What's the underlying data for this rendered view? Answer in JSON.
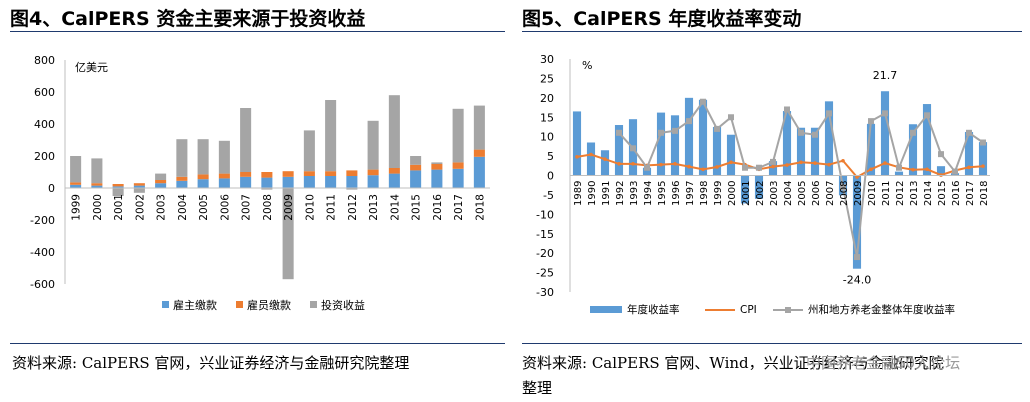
{
  "charts": [
    {
      "title": "图4、CalPERS 资金主要来源于投资收益",
      "source": "资料来源: CalPERS 官网，兴业证券经济与金融研究院整理"
    },
    {
      "title": "图5、CalPERS 年度收益率变动",
      "source_line1": "资料来源:  CalPERS 官网、Wind，兴业证券经济与金融研究院",
      "source_line2": "整理"
    }
  ],
  "watermark": "中国养老金融50人论坛",
  "chart_data": [
    {
      "type": "bar",
      "stacked": true,
      "unit_label": "亿美元",
      "ylim": [
        -600,
        800
      ],
      "yticks": [
        "800",
        "600",
        "400",
        "200",
        "0",
        "-200",
        "-400",
        "-600"
      ],
      "categories": [
        "1999",
        "2000",
        "2001",
        "2002",
        "2003",
        "2004",
        "2005",
        "2006",
        "2007",
        "2008",
        "2009",
        "2010",
        "2011",
        "2012",
        "2013",
        "2014",
        "2015",
        "2016",
        "2017",
        "2018"
      ],
      "series": [
        {
          "name": "雇主缴款",
          "color": "#5b9bd5",
          "values": [
            20,
            15,
            10,
            15,
            30,
            45,
            55,
            60,
            70,
            65,
            70,
            75,
            75,
            75,
            80,
            90,
            110,
            115,
            120,
            195
          ]
        },
        {
          "name": "雇员缴款",
          "color": "#ed7d31",
          "values": [
            15,
            15,
            15,
            15,
            20,
            25,
            30,
            30,
            30,
            35,
            35,
            30,
            30,
            35,
            35,
            35,
            35,
            35,
            40,
            45
          ]
        },
        {
          "name": "投资收益",
          "color": "#a5a5a5",
          "values": [
            165,
            155,
            -50,
            -30,
            40,
            235,
            220,
            205,
            400,
            -10,
            -570,
            255,
            445,
            -10,
            305,
            455,
            55,
            10,
            335,
            275
          ]
        }
      ],
      "legend_position": "bottom"
    },
    {
      "type": "bar+line",
      "unit_label": "%",
      "ylim": [
        -30,
        30
      ],
      "yticks": [
        "30",
        "25",
        "20",
        "15",
        "10",
        "5",
        "0",
        "-5",
        "-10",
        "-15",
        "-20",
        "-25",
        "-30"
      ],
      "categories": [
        "1989",
        "1990",
        "1991",
        "1992",
        "1993",
        "1994",
        "1995",
        "1996",
        "1997",
        "1998",
        "1999",
        "2000",
        "2001",
        "2002",
        "2003",
        "2004",
        "2005",
        "2006",
        "2007",
        "2008",
        "2009",
        "2010",
        "2011",
        "2012",
        "2013",
        "2014",
        "2015",
        "2016",
        "2017",
        "2018"
      ],
      "annotations": [
        "21.7",
        "-24.0"
      ],
      "series": [
        {
          "name": "年度收益率",
          "kind": "bar",
          "color": "#5b9bd5",
          "values": [
            16.5,
            8.5,
            6.5,
            13,
            14.5,
            2,
            16.2,
            15.5,
            20,
            19.5,
            12.5,
            10.5,
            -7.2,
            -6,
            3.7,
            16.6,
            12.3,
            12.3,
            19.1,
            -5.1,
            -24.0,
            13.3,
            21.7,
            1,
            13.2,
            18.4,
            2.4,
            0.6,
            11.2,
            8.6
          ]
        },
        {
          "name": "CPI",
          "kind": "line",
          "color": "#ed7d31",
          "values": [
            4.8,
            5.4,
            4.2,
            3,
            3,
            2.6,
            2.8,
            3,
            2.3,
            1.6,
            2.2,
            3.4,
            2.8,
            1.6,
            2.3,
            2.7,
            3.4,
            3.2,
            2.8,
            3.8,
            -0.4,
            1.6,
            3.2,
            2.1,
            1.5,
            1.6,
            0.1,
            1.3,
            2.1,
            2.4
          ]
        },
        {
          "name": "州和地方养老金整体年度收益率",
          "kind": "line",
          "color": "#a5a5a5",
          "values": [
            null,
            null,
            null,
            11,
            7,
            2,
            11,
            11.5,
            14,
            19,
            12,
            15,
            2,
            2,
            3.5,
            17,
            11,
            10.5,
            16,
            -3,
            -21,
            14,
            16,
            2,
            11,
            15.5,
            5.5,
            1,
            11,
            8.5
          ]
        }
      ],
      "legend_position": "bottom"
    }
  ]
}
